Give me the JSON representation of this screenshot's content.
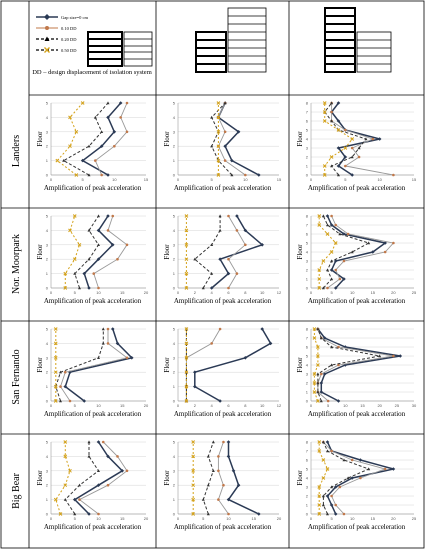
{
  "legend": {
    "items": [
      {
        "label": "Gap size=0 cm",
        "color": "#2b3a55",
        "dash": "solid",
        "marker": "diamond"
      },
      {
        "label": "0.10 DD",
        "color": "#c0784a",
        "dash": "solid",
        "marker": "circle"
      },
      {
        "label": "0.20 DD",
        "color": "#000000",
        "dash": "dash",
        "marker": "triangle"
      },
      {
        "label": "0.50 DD",
        "color": "#000000",
        "dash": "dash",
        "marker": "x"
      }
    ],
    "note": "DD – design displacement of isolation system"
  },
  "row_labels": [
    "Landers",
    "Nor. Moorpark",
    "San Fernando",
    "Big Bear"
  ],
  "xlabel": "Amplification of peak acceleration",
  "ylabel": "Floor",
  "colors": {
    "s0": "#2b3a55",
    "s1": "#999999",
    "s2": "#333333",
    "s3": "#d4a21a",
    "grid": "#cccccc"
  },
  "chart_data": [
    {
      "type": "line",
      "row": "Landers",
      "building": "5-storey + 8-storey",
      "floors": [
        0,
        1,
        2,
        3,
        4,
        5
      ],
      "xlim": [
        0,
        15
      ],
      "xticks": [
        0,
        5,
        10,
        15
      ],
      "yticks": [
        0,
        1,
        2,
        3,
        4,
        5
      ],
      "series": [
        {
          "x": [
            9,
            5,
            8,
            10,
            9,
            11
          ]
        },
        {
          "x": [
            8,
            7,
            10,
            12,
            11,
            12
          ]
        },
        {
          "x": [
            6,
            2,
            6,
            8,
            7,
            9
          ]
        },
        {
          "x": [
            4,
            1,
            3,
            4,
            3,
            5
          ]
        }
      ]
    },
    {
      "type": "line",
      "row": "Landers",
      "building": "8-storey + 5-storey",
      "floors": [
        0,
        1,
        2,
        3,
        4,
        5
      ],
      "xlim": [
        0,
        15
      ],
      "xticks": [
        0,
        5,
        10,
        15
      ],
      "yticks": [
        0,
        1,
        2,
        3,
        4,
        5
      ],
      "series": [
        {
          "x": [
            12,
            8,
            7,
            9,
            6,
            7
          ]
        },
        {
          "x": [
            10,
            7,
            6,
            7,
            6,
            7
          ]
        },
        {
          "x": [
            8,
            6,
            5,
            6,
            5,
            7
          ]
        },
        {
          "x": [
            6,
            6,
            6,
            6,
            6,
            6
          ]
        }
      ]
    },
    {
      "type": "line",
      "row": "Landers",
      "building": "8-storey + 5-storey",
      "floors": [
        0,
        1,
        2,
        3,
        4,
        5,
        6,
        7,
        8
      ],
      "xlim": [
        0,
        15
      ],
      "xticks": [
        0,
        5,
        10,
        15
      ],
      "yticks": [
        0,
        1,
        2,
        3,
        4,
        5,
        6,
        7,
        8
      ],
      "series": [
        {
          "x": [
            6,
            4,
            5,
            4,
            10,
            5,
            4,
            3,
            4
          ]
        },
        {
          "x": [
            12,
            5,
            7,
            6,
            9,
            5,
            3,
            3,
            3
          ]
        },
        {
          "x": [
            4,
            3,
            6,
            7,
            8,
            4,
            3,
            2,
            3
          ]
        },
        {
          "x": [
            2,
            2,
            3,
            5,
            6,
            4,
            2,
            2,
            2
          ]
        }
      ]
    },
    {
      "type": "line",
      "row": "Nor. Moorpark",
      "building": "5-storey + 8-storey",
      "floors": [
        0,
        1,
        2,
        3,
        4,
        5
      ],
      "xlim": [
        0,
        20
      ],
      "xticks": [
        0,
        5,
        10,
        15,
        20
      ],
      "yticks": [
        0,
        1,
        2,
        3,
        4,
        5
      ],
      "series": [
        {
          "x": [
            8,
            7,
            10,
            13,
            10,
            12
          ]
        },
        {
          "x": [
            10,
            9,
            14,
            16,
            12,
            13
          ]
        },
        {
          "x": [
            6,
            5,
            8,
            10,
            8,
            10
          ]
        },
        {
          "x": [
            3,
            3,
            5,
            6,
            4,
            5
          ]
        }
      ]
    },
    {
      "type": "line",
      "row": "Nor. Moorpark",
      "building": "8-storey + 5-storey",
      "floors": [
        0,
        1,
        2,
        3,
        4,
        5
      ],
      "xlim": [
        0,
        12
      ],
      "xticks": [
        0,
        2,
        4,
        6,
        8,
        10,
        12
      ],
      "yticks": [
        0,
        1,
        2,
        3,
        4,
        5
      ],
      "series": [
        {
          "x": [
            4,
            6,
            5,
            10,
            8,
            7
          ]
        },
        {
          "x": [
            6,
            7,
            6,
            8,
            7,
            6
          ]
        },
        {
          "x": [
            3,
            4,
            2,
            4,
            5,
            5
          ]
        },
        {
          "x": [
            1,
            1,
            1,
            1,
            1,
            1
          ]
        }
      ]
    },
    {
      "type": "line",
      "row": "Nor. Moorpark",
      "building": "8-storey + 5-storey",
      "floors": [
        0,
        1,
        2,
        3,
        4,
        5,
        6,
        7,
        8
      ],
      "xlim": [
        0,
        25
      ],
      "xticks": [
        0,
        5,
        10,
        15,
        20,
        25
      ],
      "yticks": [
        0,
        1,
        2,
        3,
        4,
        5,
        6,
        7,
        8
      ],
      "series": [
        {
          "x": [
            6,
            8,
            5,
            6,
            15,
            18,
            8,
            5,
            4
          ]
        },
        {
          "x": [
            4,
            7,
            6,
            8,
            18,
            20,
            9,
            6,
            5
          ]
        },
        {
          "x": [
            3,
            5,
            4,
            5,
            10,
            14,
            7,
            4,
            3
          ]
        },
        {
          "x": [
            2,
            2,
            2,
            3,
            5,
            6,
            4,
            2,
            2
          ]
        }
      ]
    },
    {
      "type": "line",
      "row": "San Fernando",
      "building": "5-storey + 8-storey",
      "floors": [
        0,
        1,
        2,
        3,
        4,
        5
      ],
      "xlim": [
        0,
        20
      ],
      "xticks": [
        0,
        5,
        10,
        15,
        20
      ],
      "yticks": [
        0,
        1,
        2,
        3,
        4,
        5
      ],
      "series": [
        {
          "x": [
            7,
            3,
            4,
            17,
            14,
            13
          ]
        },
        {
          "x": [
            4,
            2,
            3,
            16,
            12,
            12
          ]
        },
        {
          "x": [
            2,
            1,
            2,
            10,
            11,
            11
          ]
        },
        {
          "x": [
            1,
            1,
            1,
            1,
            1,
            1
          ]
        }
      ]
    },
    {
      "type": "line",
      "row": "San Fernando",
      "building": "8-storey + 5-storey",
      "floors": [
        0,
        1,
        2,
        3,
        4,
        5
      ],
      "xlim": [
        0,
        12
      ],
      "xticks": [
        0,
        2,
        4,
        6,
        8,
        10,
        12
      ],
      "yticks": [
        0,
        1,
        2,
        3,
        4,
        5
      ],
      "series": [
        {
          "x": [
            5,
            2,
            2,
            8,
            11,
            10
          ]
        },
        {
          "x": [
            1,
            1,
            1,
            1,
            4,
            5
          ]
        },
        {
          "x": [
            1,
            1,
            1,
            1,
            1,
            1
          ]
        },
        {
          "x": [
            1,
            1,
            1,
            1,
            1,
            1
          ]
        }
      ]
    },
    {
      "type": "line",
      "row": "San Fernando",
      "building": "8-storey + 5-storey",
      "floors": [
        0,
        1,
        2,
        3,
        4,
        5,
        6,
        7,
        8
      ],
      "xlim": [
        0,
        30
      ],
      "xticks": [
        0,
        5,
        10,
        15,
        20,
        25,
        30
      ],
      "yticks": [
        0,
        1,
        2,
        3,
        4,
        5,
        6,
        7,
        8
      ],
      "series": [
        {
          "x": [
            8,
            3,
            3,
            4,
            10,
            26,
            10,
            4,
            2
          ]
        },
        {
          "x": [
            5,
            2,
            2,
            3,
            8,
            24,
            8,
            3,
            2
          ]
        },
        {
          "x": [
            3,
            2,
            2,
            2,
            6,
            20,
            6,
            3,
            2
          ]
        },
        {
          "x": [
            2,
            1,
            1,
            1,
            2,
            2,
            2,
            1,
            1
          ]
        }
      ]
    },
    {
      "type": "line",
      "row": "Big Bear",
      "building": "5-storey + 8-storey",
      "floors": [
        0,
        1,
        2,
        3,
        4,
        5
      ],
      "xlim": [
        0,
        20
      ],
      "xticks": [
        0,
        5,
        10,
        15,
        20
      ],
      "yticks": [
        0,
        1,
        2,
        3,
        4,
        5
      ],
      "series": [
        {
          "x": [
            8,
            5,
            10,
            15,
            12,
            10
          ]
        },
        {
          "x": [
            10,
            6,
            12,
            16,
            14,
            11
          ]
        },
        {
          "x": [
            5,
            3,
            6,
            10,
            8,
            8
          ]
        },
        {
          "x": [
            2,
            1,
            3,
            4,
            3,
            3
          ]
        }
      ]
    },
    {
      "type": "line",
      "row": "Big Bear",
      "building": "8-storey + 5-storey",
      "floors": [
        0,
        1,
        2,
        3,
        4,
        5
      ],
      "xlim": [
        0,
        20
      ],
      "xticks": [
        0,
        5,
        10,
        15,
        20
      ],
      "yticks": [
        0,
        1,
        2,
        3,
        4,
        5
      ],
      "series": [
        {
          "x": [
            16,
            10,
            12,
            11,
            10,
            10
          ]
        },
        {
          "x": [
            10,
            8,
            9,
            8,
            8,
            9
          ]
        },
        {
          "x": [
            6,
            5,
            6,
            7,
            6,
            7
          ]
        },
        {
          "x": [
            3,
            3,
            3,
            3,
            3,
            3
          ]
        }
      ]
    },
    {
      "type": "line",
      "row": "Big Bear",
      "building": "8-storey + 5-storey",
      "floors": [
        0,
        1,
        2,
        3,
        4,
        5,
        6,
        7,
        8
      ],
      "xlim": [
        0,
        25
      ],
      "xticks": [
        0,
        5,
        10,
        15,
        20,
        25
      ],
      "yticks": [
        0,
        1,
        2,
        3,
        4,
        5,
        6,
        7,
        8
      ],
      "series": [
        {
          "x": [
            6,
            5,
            4,
            6,
            10,
            20,
            12,
            5,
            4
          ]
        },
        {
          "x": [
            8,
            6,
            5,
            7,
            12,
            18,
            10,
            5,
            3
          ]
        },
        {
          "x": [
            4,
            3,
            3,
            5,
            9,
            14,
            8,
            4,
            3
          ]
        },
        {
          "x": [
            2,
            2,
            2,
            2,
            3,
            4,
            3,
            2,
            2
          ]
        }
      ]
    }
  ]
}
